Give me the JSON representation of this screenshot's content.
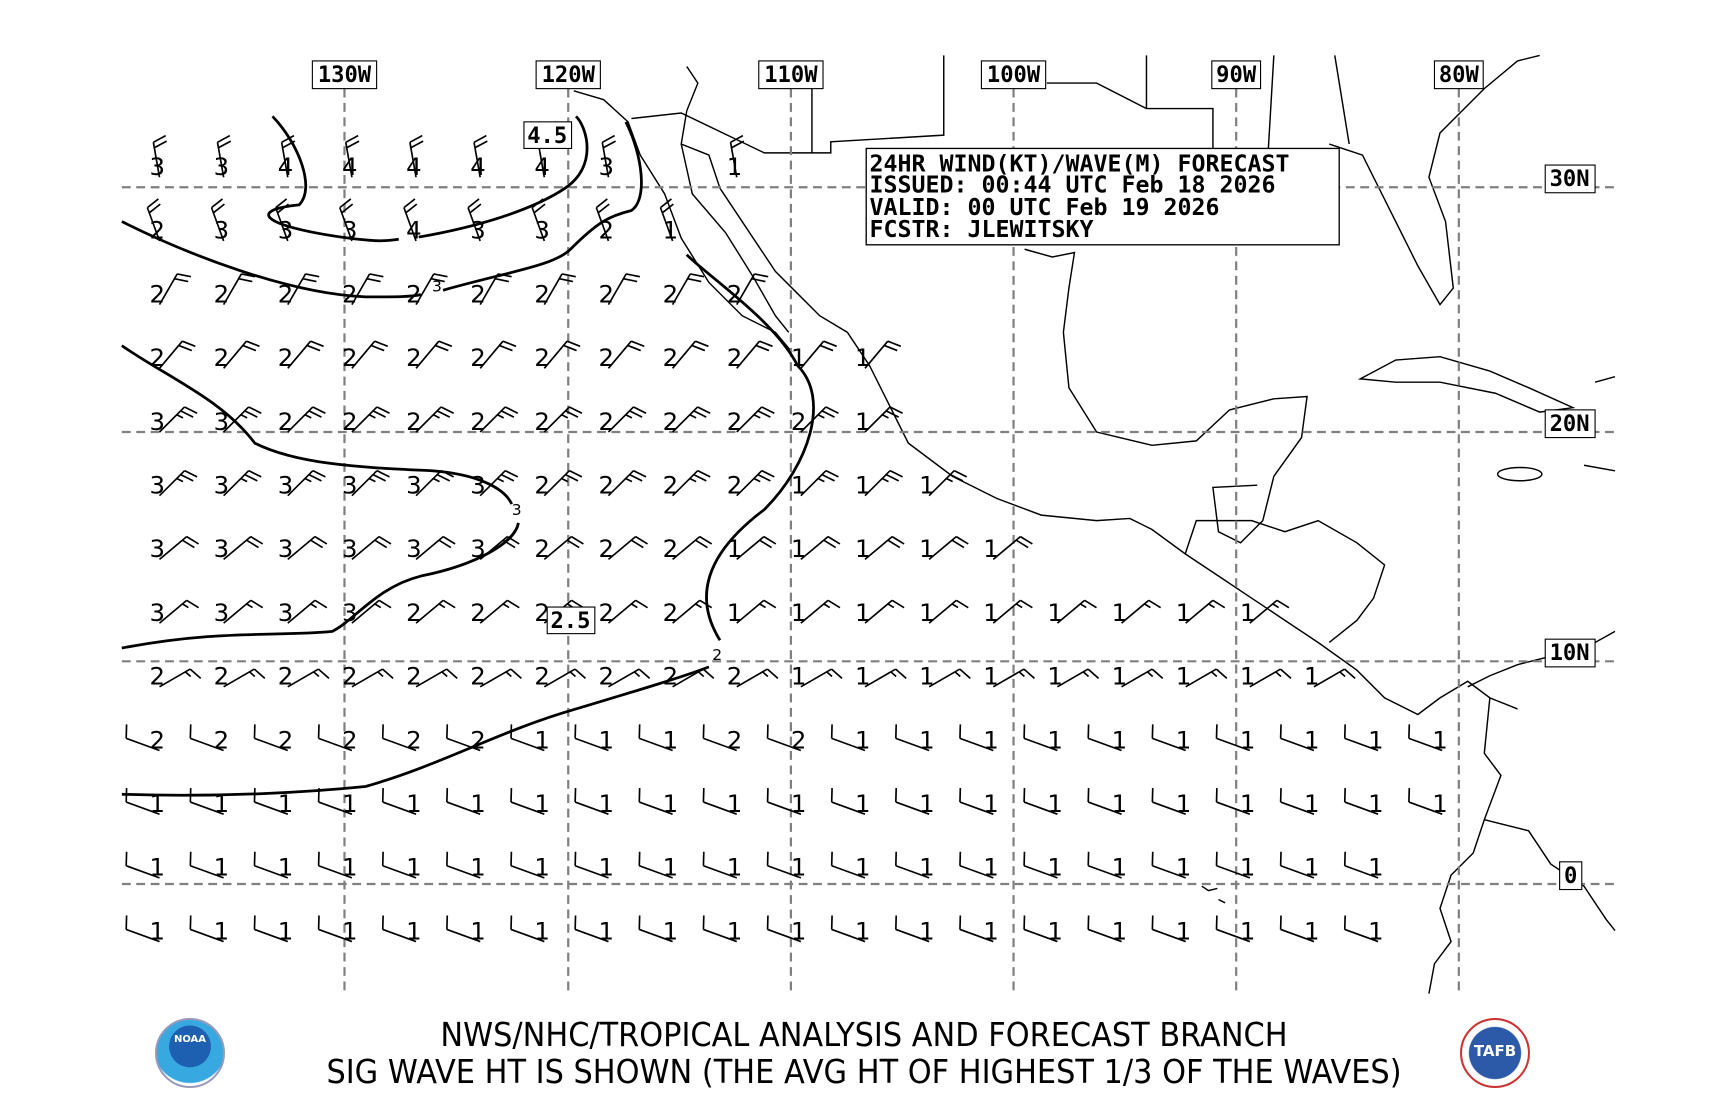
{
  "info_box": {
    "line1": "24HR WIND(KT)/WAVE(M) FORECAST",
    "line2": "ISSUED: 00:44 UTC Feb 18 2026",
    "line3": "VALID: 00 UTC Feb 19 2026",
    "line4": "FCSTR: JLEWITSKY"
  },
  "longitude_labels": [
    "130W",
    "120W",
    "110W",
    "100W",
    "90W",
    "80W"
  ],
  "latitude_labels": [
    "30N",
    "20N",
    "10N",
    "0"
  ],
  "contour_labels": {
    "c45": "4.5",
    "c25": "2.5",
    "c3a": "3",
    "c3b": "3",
    "c2": "2"
  },
  "wave_heights_m": [
    [
      3,
      3,
      4,
      4,
      4,
      4,
      4,
      3,
      null,
      1
    ],
    [
      2,
      3,
      3,
      3,
      4,
      3,
      3,
      2,
      1
    ],
    [
      2,
      2,
      2,
      2,
      2,
      2,
      2,
      2,
      2,
      2
    ],
    [
      2,
      2,
      2,
      2,
      2,
      2,
      2,
      2,
      2,
      2,
      1,
      1
    ],
    [
      3,
      3,
      2,
      2,
      2,
      2,
      2,
      2,
      2,
      2,
      2,
      1
    ],
    [
      3,
      3,
      3,
      3,
      3,
      3,
      2,
      2,
      2,
      2,
      1,
      1,
      1
    ],
    [
      3,
      3,
      3,
      3,
      3,
      3,
      2,
      2,
      2,
      1,
      1,
      1,
      1,
      1
    ],
    [
      3,
      3,
      3,
      3,
      2,
      2,
      2,
      2,
      2,
      1,
      1,
      1,
      1,
      1,
      1,
      1,
      1,
      1
    ],
    [
      2,
      2,
      2,
      2,
      2,
      2,
      2,
      2,
      2,
      2,
      1,
      1,
      1,
      1,
      1,
      1,
      1,
      1,
      1
    ],
    [
      2,
      2,
      2,
      2,
      2,
      2,
      1,
      1,
      1,
      2,
      2,
      1,
      1,
      1,
      1,
      1,
      1,
      1,
      1,
      1,
      1
    ],
    [
      1,
      1,
      1,
      1,
      1,
      1,
      1,
      1,
      1,
      1,
      1,
      1,
      1,
      1,
      1,
      1,
      1,
      1,
      1,
      1,
      1
    ],
    [
      1,
      1,
      1,
      1,
      1,
      1,
      1,
      1,
      1,
      1,
      1,
      1,
      1,
      1,
      1,
      1,
      1,
      1,
      1,
      1
    ],
    [
      1,
      1,
      1,
      1,
      1,
      1,
      1,
      1,
      1,
      1,
      1,
      1,
      1,
      1,
      1,
      1,
      1,
      1,
      1,
      1
    ]
  ],
  "wind_rows": [
    {
      "dir_from": 350,
      "kt": 20
    },
    {
      "dir_from": 340,
      "kt": 20
    },
    {
      "dir_from": 30,
      "kt": 20
    },
    {
      "dir_from": 40,
      "kt": 20
    },
    {
      "dir_from": 45,
      "kt": 25
    },
    {
      "dir_from": 45,
      "kt": 25
    },
    {
      "dir_from": 50,
      "kt": 20
    },
    {
      "dir_from": 50,
      "kt": 15
    },
    {
      "dir_from": 60,
      "kt": 15
    },
    {
      "dir_from": 290,
      "kt": 10
    },
    {
      "dir_from": 290,
      "kt": 10
    },
    {
      "dir_from": 290,
      "kt": 10
    },
    {
      "dir_from": 290,
      "kt": 10
    }
  ],
  "footer": {
    "line1": "NWS/NHC/TROPICAL ANALYSIS AND FORECAST BRANCH",
    "line2": "SIG WAVE HT IS SHOWN (THE AVG HT OF HIGHEST 1/3 OF THE WAVES)"
  },
  "logos": {
    "left": "NOAA",
    "right": "TAFB"
  }
}
